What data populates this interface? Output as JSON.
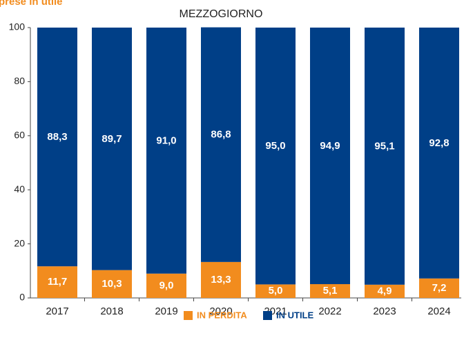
{
  "chart_data": {
    "type": "stacked_bar",
    "title": "prese in utile",
    "subtitle": "MEZZOGIORNO",
    "categories": [
      "2017",
      "2018",
      "2019",
      "2020",
      "2021",
      "2022",
      "2023",
      "2024"
    ],
    "series": [
      {
        "name": "IN PERDITA",
        "color": "#f28c1e",
        "values": [
          11.7,
          10.3,
          9.0,
          13.3,
          5.0,
          5.1,
          4.9,
          7.2
        ],
        "value_labels": [
          "11,7",
          "10,3",
          "9,0",
          "13,3",
          "5,0",
          "5,1",
          "4,9",
          "7,2"
        ]
      },
      {
        "name": "IN UTILE",
        "color": "#003f87",
        "values": [
          88.3,
          89.7,
          91.0,
          86.8,
          95.0,
          94.9,
          95.1,
          92.8
        ],
        "value_labels": [
          "88,3",
          "89,7",
          "91,0",
          "86,8",
          "95,0",
          "94,9",
          "95,1",
          "92,8"
        ]
      }
    ],
    "ylim": [
      0,
      100
    ],
    "yticks": [
      0,
      20,
      40,
      60,
      80,
      100
    ],
    "legend": "bottom"
  }
}
